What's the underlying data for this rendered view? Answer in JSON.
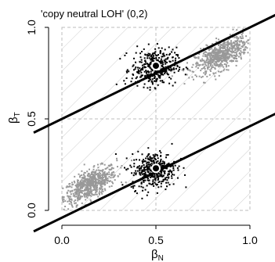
{
  "chart_data": {
    "type": "scatter",
    "title": "'copy neutral LOH' (0,2)",
    "xlabel": "β",
    "xlabel_sub": "N",
    "ylabel": "β",
    "ylabel_sub": "T",
    "xlim": [
      0,
      1
    ],
    "ylim": [
      0,
      1
    ],
    "x_ticks": [
      "0.0",
      "0.5",
      "1.0"
    ],
    "y_ticks": [
      "0.0",
      "0.5",
      "1.0"
    ],
    "grid": "dashed gray gridlines at 0.5 with diagonal hatching",
    "colors": {
      "informative": "#000000",
      "background": "#999999",
      "lines": "#000000",
      "frame": "#bdbdbd"
    },
    "series": [
      {
        "group": "gray",
        "clusters": [
          {
            "center": [
              0.15,
              0.14
            ],
            "spread": [
              0.07,
              0.05
            ],
            "rho": 0.65,
            "n": 650
          },
          {
            "center": [
              0.85,
              0.85
            ],
            "spread": [
              0.07,
              0.05
            ],
            "rho": 0.65,
            "n": 650
          }
        ]
      },
      {
        "group": "black",
        "clusters": [
          {
            "center": [
              0.49,
              0.78
            ],
            "spread": [
              0.06,
              0.05
            ],
            "rho": 0.1,
            "n": 380
          },
          {
            "center": [
              0.49,
              0.22
            ],
            "spread": [
              0.06,
              0.05
            ],
            "rho": 0.1,
            "n": 380
          }
        ]
      }
    ],
    "centroids": [
      {
        "x": 0.5,
        "y": 0.79
      },
      {
        "x": 0.5,
        "y": 0.23
      }
    ],
    "lines": [
      {
        "intercept": 0.5,
        "slope": 0.5
      },
      {
        "intercept": -0.04,
        "slope": 0.5
      }
    ]
  }
}
